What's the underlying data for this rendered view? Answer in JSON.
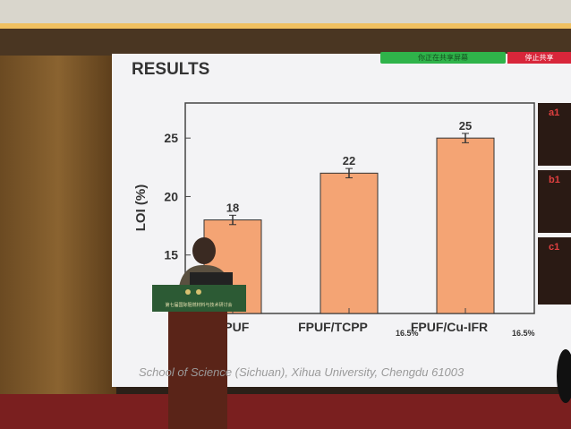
{
  "slide": {
    "title": "RESULTS",
    "footer": "School of Science (Sichuan), Xihua University, Chengdu 61003",
    "side_panels": [
      "a1",
      "b1",
      "c1"
    ]
  },
  "screen_share": {
    "status": "你正在共享屏幕",
    "stop_button": "停止共享"
  },
  "podium": {
    "banner": "第七届国际阻燃材料与技术研讨会"
  },
  "colors": {
    "bar": "#f4a474",
    "bar_edge": "#333333",
    "share_green": "#2fb34a",
    "stop_red": "#d8263a"
  },
  "chart_data": {
    "type": "bar",
    "categories": [
      "FPUF",
      "FPUF/TCPP 16.5%",
      "FPUF/Cu-IFR 16.5%"
    ],
    "category_labels": [
      [
        "FPUF",
        ""
      ],
      [
        "FPUF/TCPP",
        "16.5%"
      ],
      [
        "FPUF/Cu-IFR",
        "16.5%"
      ]
    ],
    "values": [
      18,
      22,
      25
    ],
    "data_labels": [
      "18",
      "22",
      "25"
    ],
    "ylabel": "LOI (%)",
    "yticks": [
      15,
      20,
      25
    ],
    "ylim": [
      10,
      28
    ],
    "error_bars": true,
    "grid": false
  }
}
